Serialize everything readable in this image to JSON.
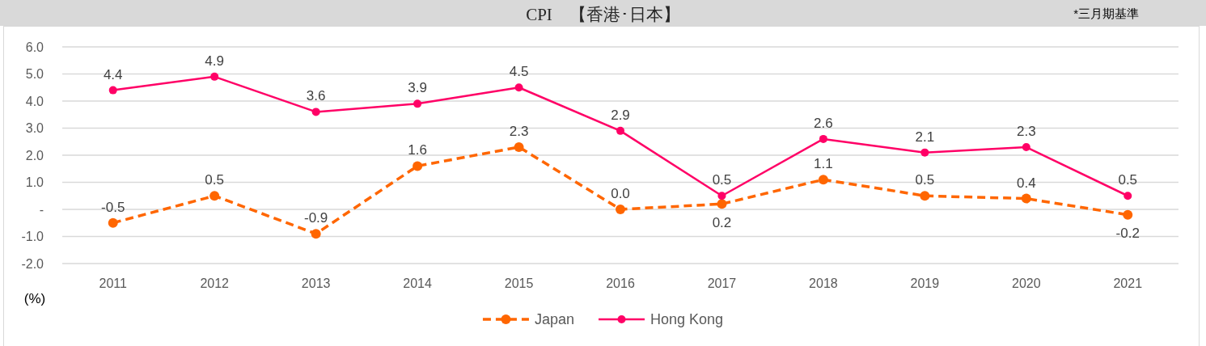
{
  "chart_data": {
    "type": "line",
    "title": "CPI　【香港･日本】",
    "annotations": [
      "*三月期基準"
    ],
    "ylabel": "(%)",
    "categories": [
      "2011",
      "2012",
      "2013",
      "2014",
      "2015",
      "2016",
      "2017",
      "2018",
      "2019",
      "2020",
      "2021"
    ],
    "series": [
      {
        "name": "Japan",
        "color": "#ff6600",
        "line_style": "dashed",
        "values": [
          -0.5,
          0.5,
          -0.9,
          1.6,
          2.3,
          0.0,
          0.2,
          1.1,
          0.5,
          0.4,
          -0.2
        ],
        "value_labels": [
          "-0.5",
          "0.5",
          "-0.9",
          "1.6",
          "2.3",
          "0.0",
          "0.2",
          "1.1",
          "0.5",
          "0.4",
          "-0.2"
        ]
      },
      {
        "name": "Hong Kong",
        "color": "#ff0066",
        "line_style": "solid",
        "values": [
          4.4,
          4.9,
          3.6,
          3.9,
          4.5,
          2.9,
          0.5,
          2.6,
          2.1,
          2.3,
          0.5
        ],
        "value_labels": [
          "4.4",
          "4.9",
          "3.6",
          "3.9",
          "4.5",
          "2.9",
          "0.5",
          "2.6",
          "2.1",
          "2.3",
          "0.5"
        ]
      }
    ],
    "marker": "circle",
    "ylim": [
      -2,
      6
    ],
    "yticks": [
      {
        "value": -2,
        "label": "-2.0"
      },
      {
        "value": -1,
        "label": "-1.0"
      },
      {
        "value": 0,
        "label": "-"
      },
      {
        "value": 1,
        "label": "1.0"
      },
      {
        "value": 2,
        "label": "2.0"
      },
      {
        "value": 3,
        "label": "3.0"
      },
      {
        "value": 4,
        "label": "4.0"
      },
      {
        "value": 5,
        "label": "5.0"
      },
      {
        "value": 6,
        "label": "6.0"
      }
    ],
    "grid": "y",
    "legend": "bottom"
  }
}
